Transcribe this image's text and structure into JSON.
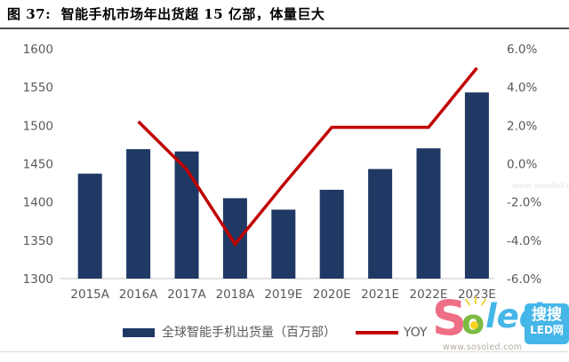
{
  "page": {
    "title": "图 37:  智能手机市场年出货超 15 亿部，体量巨大"
  },
  "chart_data": {
    "type": "combo",
    "subtypes": [
      "bar",
      "line"
    ],
    "title": "图 37:  智能手机市场年出货超 15 亿部，体量巨大",
    "categories": [
      "2015A",
      "2016A",
      "2017A",
      "2018A",
      "2019E",
      "2020E",
      "2021E",
      "2022E",
      "2023E"
    ],
    "series": [
      {
        "name": "全球智能手机出货量（百万部）",
        "render": "bar",
        "axis": "left",
        "color": "#1f3864",
        "values": [
          1437,
          1469,
          1466,
          1405,
          1390,
          1416,
          1443,
          1470,
          1543
        ]
      },
      {
        "name": "YOY",
        "render": "line",
        "axis": "right",
        "color": "#c00000",
        "values": [
          null,
          2.2,
          -0.3,
          -4.2,
          -1.1,
          1.9,
          1.9,
          1.9,
          5.0
        ]
      }
    ],
    "left_axis": {
      "min": 1300,
      "max": 1600,
      "ticks": [
        "1600",
        "1550",
        "1500",
        "1450",
        "1400",
        "1350",
        "1300"
      ]
    },
    "right_axis": {
      "min": -6,
      "max": 6,
      "unit": "%",
      "ticks": [
        "6.0%",
        "4.0%",
        "2.0%",
        "0.0%",
        "-2.0%",
        "-4.0%",
        "-6.0%"
      ]
    },
    "grid": false,
    "legend_position": "bottom"
  },
  "legend": [
    {
      "label": "全球智能手机出货量（百万部）",
      "color": "#1f3864"
    },
    {
      "label": "YOY",
      "color": "#c00000"
    }
  ],
  "watermark": {
    "logo_text_s": "S",
    "logo_text_o": "o",
    "logo_text_led": "led",
    "badge_line1": "搜搜",
    "badge_line2": "LED网",
    "url": "www.sosoled.com",
    "faint_url": "www.sosoled.com"
  },
  "colors": {
    "bar": "#1f3864",
    "line": "#c00000",
    "axis_text": "#595959",
    "baseline": "#d9d9d9",
    "logo_blue": "#45b6e8",
    "logo_pink": "#ee6e86",
    "logo_green": "#7dbb42"
  }
}
